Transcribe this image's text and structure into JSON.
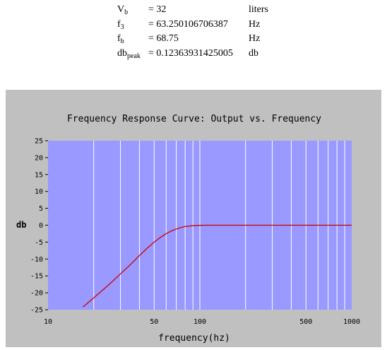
{
  "parameters": [
    {
      "name_main": "V",
      "name_sub": "b",
      "equals": "=",
      "value": "32",
      "unit": "liters"
    },
    {
      "name_main": "f",
      "name_sub": "3",
      "equals": "=",
      "value": "63.250106706387",
      "unit": "Hz"
    },
    {
      "name_main": "f",
      "name_sub": "b",
      "equals": "=",
      "value": "68.75",
      "unit": "Hz"
    },
    {
      "name_main": "db",
      "name_sub": "peak",
      "equals": "=",
      "value": "0.12363931425005",
      "unit": "db"
    }
  ],
  "colors": {
    "panel_background": "#c0c0c0",
    "plot_background": "#9999ff",
    "grid": "#ffffff",
    "curve": "#cc0000"
  },
  "chart_data": {
    "type": "line",
    "title": "Frequency Response Curve: Output vs. Frequency",
    "xlabel": "frequency(hz)",
    "ylabel": "db",
    "x_scale": "log",
    "xlim": [
      10,
      1000
    ],
    "ylim": [
      -25,
      25
    ],
    "x_tick_labels": [
      {
        "value": 10,
        "label": "10"
      },
      {
        "value": 50,
        "label": "50"
      },
      {
        "value": 100,
        "label": "100"
      },
      {
        "value": 500,
        "label": "500"
      },
      {
        "value": 1000,
        "label": "1000"
      }
    ],
    "x_gridlines": [
      20,
      30,
      40,
      50,
      60,
      70,
      80,
      90,
      100,
      200,
      300,
      400,
      500,
      600,
      700,
      800,
      900
    ],
    "y_ticks": [
      25,
      20,
      15,
      10,
      5,
      0,
      -5,
      -10,
      -15,
      -20,
      -25
    ],
    "grid": true,
    "legend": "none",
    "series": [
      {
        "x": [
          17,
          20,
          25,
          30,
          35,
          40,
          45,
          50,
          55,
          60,
          65,
          70,
          75,
          80,
          90,
          100,
          110,
          120,
          130,
          150,
          200,
          300,
          500,
          1000
        ],
        "y": [
          -24.2,
          -21.5,
          -17.7,
          -14.4,
          -11.6,
          -9.0,
          -6.8,
          -5.0,
          -3.6,
          -2.5,
          -1.7,
          -1.1,
          -0.7,
          -0.4,
          -0.15,
          -0.05,
          0.0,
          0.0,
          0.0,
          0.0,
          0.0,
          0.0,
          0.0,
          0.0
        ]
      }
    ]
  }
}
